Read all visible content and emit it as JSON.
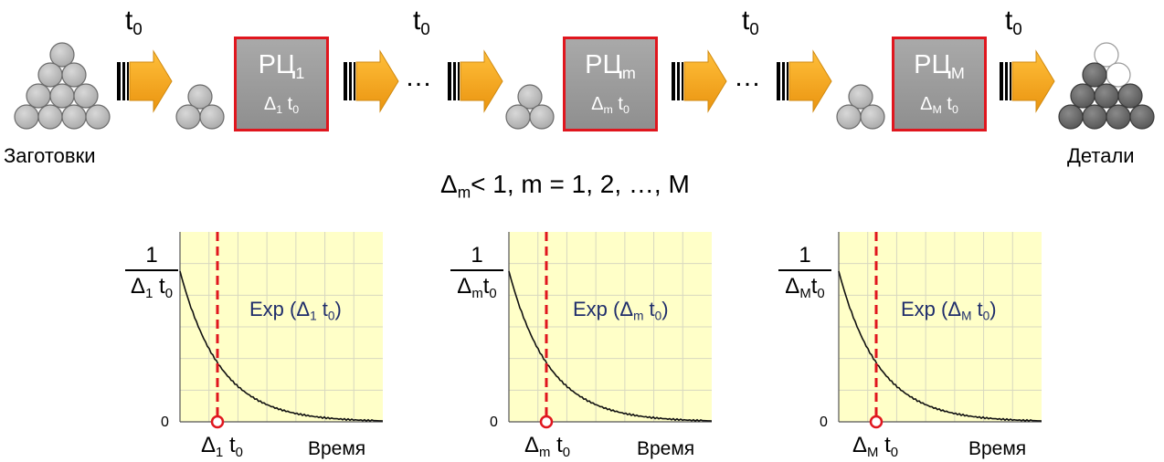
{
  "t0": {
    "base": "t",
    "sub": "0"
  },
  "dots": "…",
  "inputs_label": "Заготовки",
  "outputs_label": "Детали",
  "stations": [
    {
      "name": "РЦ",
      "name_sub": "1",
      "rate": "Δ",
      "rate_sub": "1",
      "rate_t": "t",
      "rate_t_sub": "0"
    },
    {
      "name": "РЦ",
      "name_sub": "m",
      "rate": "Δ",
      "rate_sub": "m",
      "rate_t": "t",
      "rate_t_sub": "0"
    },
    {
      "name": "РЦ",
      "name_sub": "M",
      "rate": "Δ",
      "rate_sub": "M",
      "rate_t": "t",
      "rate_t_sub": "0"
    }
  ],
  "condition": {
    "delta": "Δ",
    "delta_sub": "m",
    "rest": "< 1, m = 1, 2, …, M"
  },
  "plots": [
    {
      "y_top": "1",
      "y_den": "Δ",
      "y_den_sub": "1",
      "y_den_t": "t",
      "y_den_t_sub": "0",
      "y_zero": "0",
      "x_marker": "Δ",
      "x_marker_sub": "1",
      "x_marker_t": "t",
      "x_marker_t_sub": "0",
      "x_label": "Время",
      "curve_label": "Exp (",
      "curve_label_delta": "Δ",
      "curve_label_sub": "1",
      "curve_label_t": "t",
      "curve_label_t_sub": "0",
      "curve_label_end": ")"
    },
    {
      "y_top": "1",
      "y_den": "Δ",
      "y_den_sub": "m",
      "y_den_t": "t",
      "y_den_t_sub": "0",
      "y_zero": "0",
      "x_marker": "Δ",
      "x_marker_sub": "m",
      "x_marker_t": "t",
      "x_marker_t_sub": "0",
      "x_label": "Время",
      "curve_label": "Exp (",
      "curve_label_delta": "Δ",
      "curve_label_sub": "m",
      "curve_label_t": "t",
      "curve_label_t_sub": "0",
      "curve_label_end": ")"
    },
    {
      "y_top": "1",
      "y_den": "Δ",
      "y_den_sub": "M",
      "y_den_t": "t",
      "y_den_t_sub": "0",
      "y_zero": "0",
      "x_marker": "Δ",
      "x_marker_sub": "M",
      "x_marker_t": "t",
      "x_marker_t_sub": "0",
      "x_label": "Время",
      "curve_label": "Exp (",
      "curve_label_delta": "Δ",
      "curve_label_sub": "M",
      "curve_label_t": "t",
      "curve_label_t_sub": "0",
      "curve_label_end": ")"
    }
  ],
  "colors": {
    "arrow": "#f5a31c",
    "station_border": "#e0161e",
    "station_fill": "#999999",
    "plot_bg": "#ffffc8",
    "marker": "#e0161e",
    "exp_text": "#1f2d6b",
    "part_light": "#bfbfbf",
    "part_dark": "#6f6f6f"
  }
}
